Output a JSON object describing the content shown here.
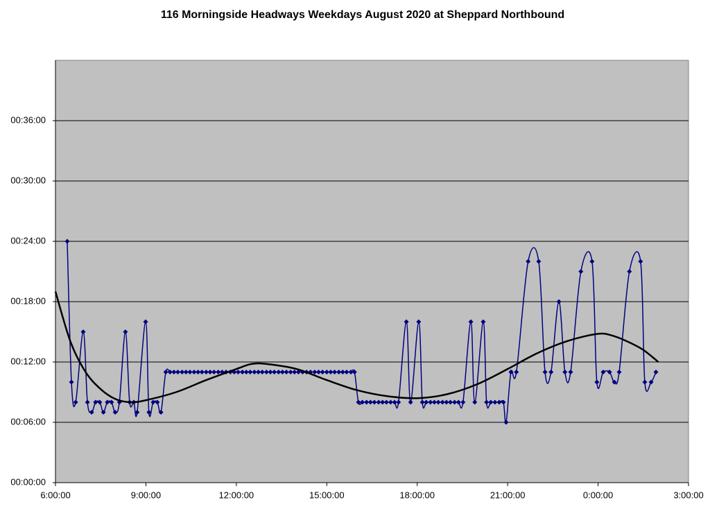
{
  "chart_data": {
    "type": "line",
    "title": "116 Morningside Headways Weekdays August 2020 at Sheppard Northbound",
    "xlim": [
      6,
      27
    ],
    "xticks": [
      {
        "value": 6,
        "label": "6:00:00"
      },
      {
        "value": 9,
        "label": "9:00:00"
      },
      {
        "value": 12,
        "label": "12:00:00"
      },
      {
        "value": 15,
        "label": "15:00:00"
      },
      {
        "value": 18,
        "label": "18:00:00"
      },
      {
        "value": 21,
        "label": "21:00:00"
      },
      {
        "value": 24,
        "label": "0:00:00"
      },
      {
        "value": 27,
        "label": "3:00:00"
      }
    ],
    "ylim": [
      0,
      42
    ],
    "yticks": [
      {
        "value": 0,
        "label": "00:00:00"
      },
      {
        "value": 6,
        "label": "00:06:00"
      },
      {
        "value": 12,
        "label": "00:12:00"
      },
      {
        "value": 18,
        "label": "00:18:00"
      },
      {
        "value": 24,
        "label": "00:24:00"
      },
      {
        "value": 30,
        "label": "00:30:00"
      },
      {
        "value": 36,
        "label": "00:36:00"
      }
    ],
    "grid": true,
    "series": [
      {
        "color": "#000080",
        "markers": true,
        "smooth": true,
        "x": [
          6.39,
          6.53,
          6.67,
          6.92,
          7.06,
          7.2,
          7.33,
          7.47,
          7.59,
          7.72,
          7.86,
          7.98,
          8.12,
          8.32,
          8.46,
          8.6,
          8.71,
          8.99,
          9.1,
          9.24,
          9.38,
          9.5,
          9.66,
          9.8,
          9.93,
          10.06,
          10.2,
          10.33,
          10.46,
          10.6,
          10.73,
          10.86,
          11.0,
          11.13,
          11.26,
          11.4,
          11.53,
          11.66,
          11.8,
          11.93,
          12.06,
          12.2,
          12.33,
          12.46,
          12.6,
          12.73,
          12.86,
          13.0,
          13.13,
          13.26,
          13.4,
          13.53,
          13.66,
          13.8,
          13.93,
          14.06,
          14.2,
          14.33,
          14.46,
          14.6,
          14.73,
          14.86,
          15.0,
          15.13,
          15.26,
          15.4,
          15.53,
          15.66,
          15.8,
          15.92,
          16.05,
          16.18,
          16.32,
          16.45,
          16.58,
          16.72,
          16.85,
          16.98,
          17.12,
          17.25,
          17.38,
          17.64,
          17.78,
          18.05,
          18.17,
          18.3,
          18.44,
          18.57,
          18.7,
          18.84,
          18.97,
          19.1,
          19.24,
          19.37,
          19.52,
          19.78,
          19.91,
          20.19,
          20.3,
          20.44,
          20.58,
          20.72,
          20.86,
          20.95,
          21.11,
          21.29,
          21.68,
          22.03,
          22.24,
          22.44,
          22.7,
          22.9,
          23.09,
          23.43,
          23.8,
          23.96,
          24.17,
          24.38,
          24.54,
          24.7,
          25.04,
          25.41,
          25.55,
          25.76,
          25.92
        ],
        "values": [
          24,
          10,
          8,
          15,
          8,
          7,
          8,
          8,
          7,
          8,
          8,
          7,
          8,
          15,
          8,
          8,
          7,
          16,
          7,
          8,
          8,
          7,
          11,
          11,
          11,
          11,
          11,
          11,
          11,
          11,
          11,
          11,
          11,
          11,
          11,
          11,
          11,
          11,
          11,
          11,
          11,
          11,
          11,
          11,
          11,
          11,
          11,
          11,
          11,
          11,
          11,
          11,
          11,
          11,
          11,
          11,
          11,
          11,
          11,
          11,
          11,
          11,
          11,
          11,
          11,
          11,
          11,
          11,
          11,
          11,
          8,
          8,
          8,
          8,
          8,
          8,
          8,
          8,
          8,
          8,
          8,
          16,
          8,
          16,
          8,
          8,
          8,
          8,
          8,
          8,
          8,
          8,
          8,
          8,
          8,
          16,
          8,
          16,
          8,
          8,
          8,
          8,
          8,
          6,
          11,
          11,
          22,
          22,
          11,
          11,
          18,
          11,
          11,
          21,
          22,
          10,
          11,
          11,
          10,
          11,
          21,
          22,
          10,
          10,
          11
        ]
      },
      {
        "color": "#000000",
        "markers": false,
        "smooth": true,
        "x": [
          6,
          6.5,
          7,
          7.5,
          8,
          8.5,
          9,
          10,
          11,
          12,
          12.5,
          13,
          14,
          15,
          16,
          17,
          18,
          19,
          20,
          21,
          22,
          23,
          24,
          24.5,
          25,
          25.5,
          26
        ],
        "values": [
          19,
          14,
          11,
          9.3,
          8.3,
          8,
          8.2,
          9,
          10.2,
          11.3,
          11.8,
          11.8,
          11.3,
          10.2,
          9.2,
          8.6,
          8.4,
          8.8,
          9.8,
          11.3,
          12.9,
          14.1,
          14.8,
          14.6,
          14,
          13.2,
          12
        ]
      }
    ]
  }
}
